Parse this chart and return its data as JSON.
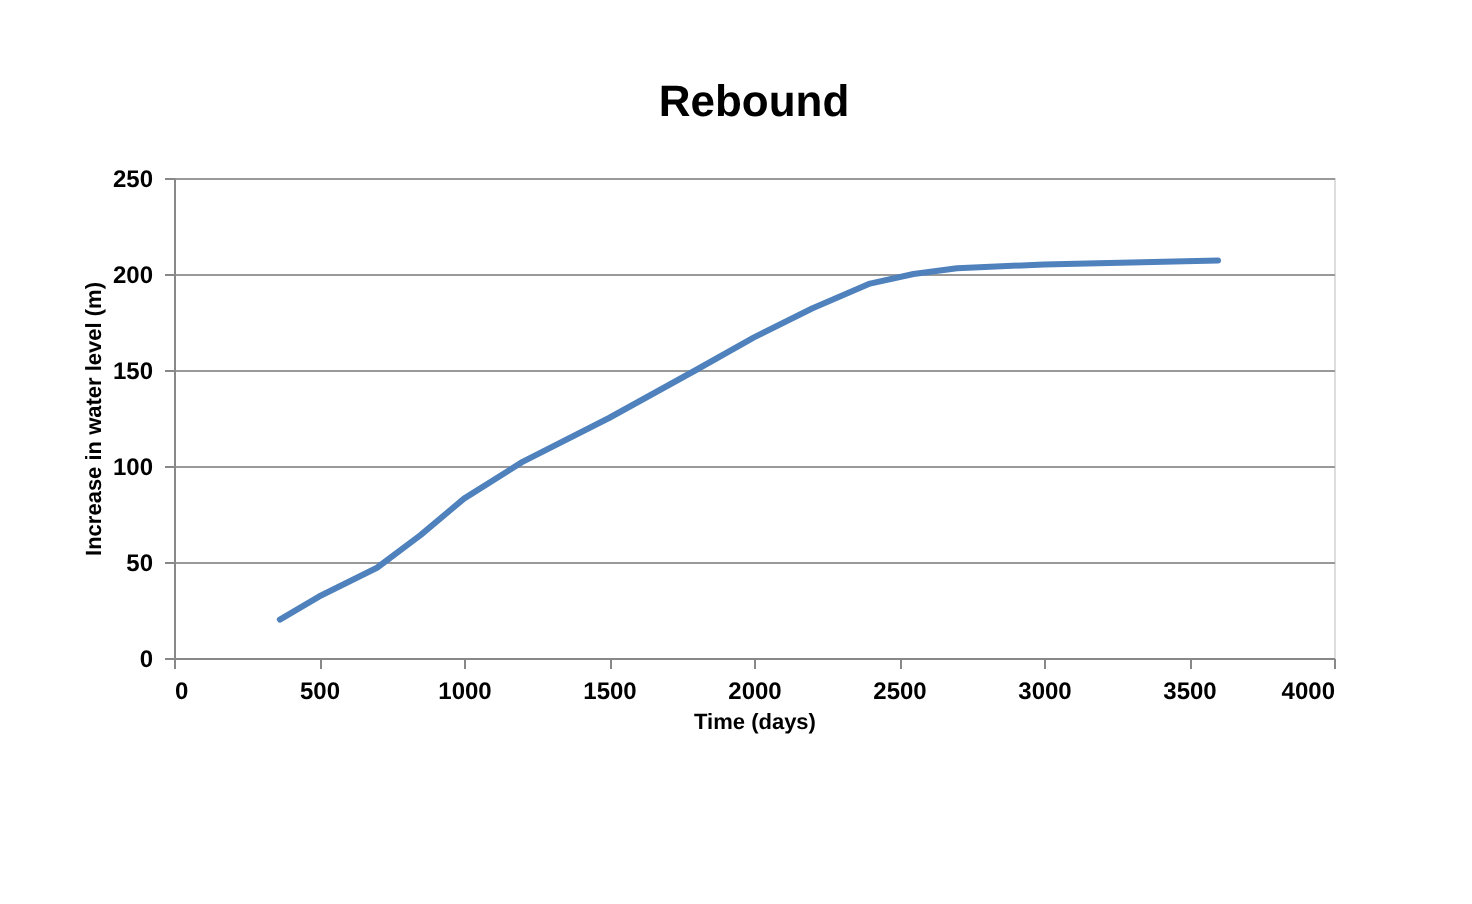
{
  "chart_data": {
    "type": "line",
    "title": "Rebound",
    "xlabel": "Time (days)",
    "ylabel": "Increase in water level (m)",
    "x": [
      365,
      500,
      700,
      850,
      1000,
      1200,
      1500,
      1800,
      2000,
      2200,
      2400,
      2550,
      2700,
      3000,
      3300,
      3600
    ],
    "series": [
      {
        "color": "#4f81bd",
        "values": [
          20,
          32,
          47,
          64,
          83,
          102,
          125,
          150,
          167,
          182,
          195,
          200,
          203,
          205,
          206,
          207
        ]
      }
    ],
    "xlim": [
      0,
      4000
    ],
    "xticks": [
      0,
      500,
      1000,
      1500,
      2000,
      2500,
      3000,
      3500,
      4000
    ],
    "ylim": [
      0,
      250
    ],
    "yticks": [
      0,
      50,
      100,
      150,
      200,
      250
    ],
    "grid": "y",
    "marker": "none",
    "line_style": "solid"
  }
}
